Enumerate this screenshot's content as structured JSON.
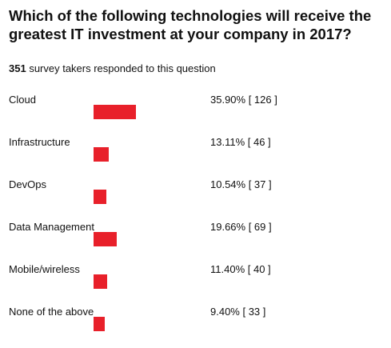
{
  "title": "Which of the following technologies will receive the greatest IT investment at your company in 2017?",
  "summary": {
    "count": "351",
    "text": " survey takers responded to this question"
  },
  "colors": {
    "bar": "#e8202a"
  },
  "chart_data": {
    "type": "bar",
    "orientation": "horizontal",
    "categories": [
      "Cloud",
      "Infrastructure",
      "DevOps",
      "Data Management",
      "Mobile/wireless",
      "None of the above"
    ],
    "values": [
      35.9,
      13.11,
      10.54,
      19.66,
      11.4,
      9.4
    ],
    "counts": [
      126,
      46,
      37,
      69,
      40,
      33
    ],
    "value_labels": [
      "35.90% [ 126 ]",
      "13.11% [ 46 ]",
      "10.54% [ 37 ]",
      "19.66% [ 69 ]",
      "11.40% [ 40 ]",
      "9.40% [ 33 ]"
    ],
    "grid": false
  }
}
